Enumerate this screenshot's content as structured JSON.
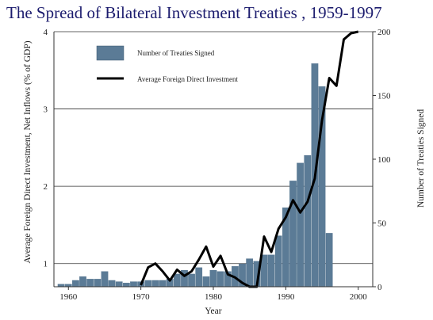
{
  "chart_data": {
    "type": "bar+line",
    "title": "The Spread of Bilateral Investment Treaties , 1959-1997",
    "xlabel": "Year",
    "ylabel_left": "Average Foreign Direct Investment, Net Inflows (% of GDP)",
    "ylabel_right": "Number of Treaties Signed",
    "xlim": [
      1958,
      2002
    ],
    "ylim_left": [
      0.7,
      4
    ],
    "ylim_right": [
      0,
      200
    ],
    "x_ticks": [
      "1960",
      "1970",
      "1980",
      "1990",
      "2000"
    ],
    "y_ticks_left": [
      "1",
      "2",
      "3",
      "4"
    ],
    "y_ticks_right": [
      "0",
      "50",
      "100",
      "150",
      "200"
    ],
    "grid": "horizontal at left-axis ticks",
    "legend_position": "top-left",
    "series": [
      {
        "name": "Number of Treaties Signed",
        "type": "bar",
        "axis": "right",
        "color": "#5b7b96",
        "x": [
          1959,
          1960,
          1961,
          1962,
          1963,
          1964,
          1965,
          1966,
          1967,
          1968,
          1969,
          1970,
          1971,
          1972,
          1973,
          1974,
          1975,
          1976,
          1977,
          1978,
          1979,
          1980,
          1981,
          1982,
          1983,
          1984,
          1985,
          1986,
          1987,
          1988,
          1989,
          1990,
          1991,
          1992,
          1993,
          1994,
          1995,
          1996
        ],
        "values": [
          2,
          2,
          5,
          8,
          6,
          6,
          12,
          5,
          4,
          3,
          4,
          4,
          5,
          5,
          5,
          6,
          10,
          13,
          10,
          15,
          8,
          13,
          12,
          12,
          16,
          18,
          22,
          20,
          25,
          25,
          40,
          62,
          83,
          97,
          103,
          175,
          157,
          42
        ]
      },
      {
        "name": "Average Foreign Direct Investment",
        "type": "line",
        "axis": "left",
        "color": "#000000",
        "x": [
          1970,
          1971,
          1972,
          1973,
          1974,
          1975,
          1976,
          1977,
          1978,
          1979,
          1980,
          1981,
          1982,
          1983,
          1984,
          1985,
          1986,
          1987,
          1988,
          1989,
          1990,
          1991,
          1992,
          1993,
          1994,
          1995,
          1996,
          1997,
          1998,
          1999,
          2000
        ],
        "values": [
          0.72,
          0.95,
          1.0,
          0.9,
          0.78,
          0.92,
          0.84,
          0.9,
          1.05,
          1.22,
          0.96,
          1.1,
          0.86,
          0.82,
          0.75,
          0.7,
          0.7,
          1.35,
          1.15,
          1.45,
          1.6,
          1.82,
          1.66,
          1.8,
          2.1,
          2.85,
          3.4,
          3.3,
          3.9,
          3.98,
          4.0
        ]
      }
    ]
  }
}
